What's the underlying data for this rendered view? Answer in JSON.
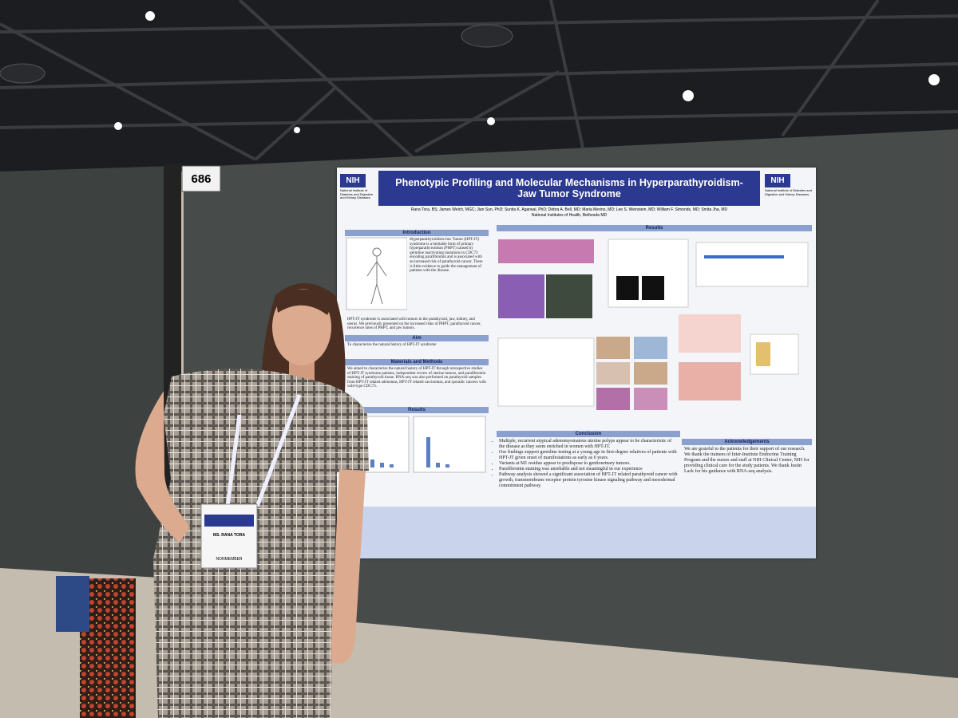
{
  "booth_number": "686",
  "poster": {
    "logo": "NIH",
    "logo_caption": "National Institute of Diabetes and Digestive and Kidney Diseases",
    "title": "Phenotypic Profiling and Molecular Mechanisms in Hyperparathyroidism-Jaw Tumor Syndrome",
    "authors": "Rana Tora, BS; James Welch, MGC; Jian Sun, PhD; Sunita K. Agarwal, PhD; Debra A. Bell, MD; Maria Merino, MD; Lee S. Weinstein, MD; William F. Simonds, MD; Smita Jha, MD",
    "affiliation": "National Institutes of Health, Bethesda MD",
    "introduction": {
      "heading": "Introduction",
      "paragraphs": [
        "Hyperparathyroidism-Jaw Tumor (HPT-JT) syndrome is a heritable form of primary hyperparathyroidism (PHPT) caused by germline inactivating mutations in CDC73 encoding parafibromin and is associated with an increased risk of parathyroid cancer. There is little evidence to guide the management of patients with the disease.",
        "HPT-JT syndrome is associated with tumors in the parathyroid, jaw, kidney, and uterus. We previously presented on the increased risks of PHPT, parathyroid cancer, recurrence rates of PHPT, and jaw tumors."
      ]
    },
    "aim": {
      "heading": "Aim",
      "text": "To characterize the natural history of HPT-JT syndrome"
    },
    "methods": {
      "heading": "Materials and Methods",
      "text": "We aimed to characterize the natural history of HPT-JT through retrospective studies of HPT-JT syndrome patients, independent review of uterine tumors, and parafibromin staining of parathyroid tissue. RNA-seq was also performed on parathyroid samples from HPT-JT related adenomas, HPT-JT related carcinomas, and sporadic cancers with wild-type CDC73."
    },
    "results_heading": "Results",
    "conclusion": {
      "heading": "Conclusion",
      "bullets": [
        "Multiple, recurrent atypical adenomyomatous uterine polyps appear to be characteristic of the disease as they seem enriched in women with HPT-JT.",
        "Our findings support germline testing at a young age in first-degree relatives of patients with HPT-JT given onset of manifestations as early as 6 years.",
        "Variants at M1 residue appear to predispose to genitourinary tumors.",
        "Parafibromin staining was unreliable and not meaningful in our experience",
        "Pathway analysis showed a significant association of HPT-JT related parathyroid cancer with growth, transmembrane receptor protein tyrosine kinase signaling pathway and mesodermal commitment pathway."
      ]
    },
    "acknowledgements": {
      "heading": "Acknowledgements",
      "text": "We are grateful to the patients for their support of our research. We thank the trainees of Inter-Institute Endocrine Training Program and the nurses and staff at NIH Clinical Center, NIH for providing clinical care for the study patients. We thank Justin Lack for his guidance with RNA-seq analysis."
    }
  },
  "badge": {
    "name": "MS. RANA TORA",
    "role": "NONMEMBER"
  }
}
